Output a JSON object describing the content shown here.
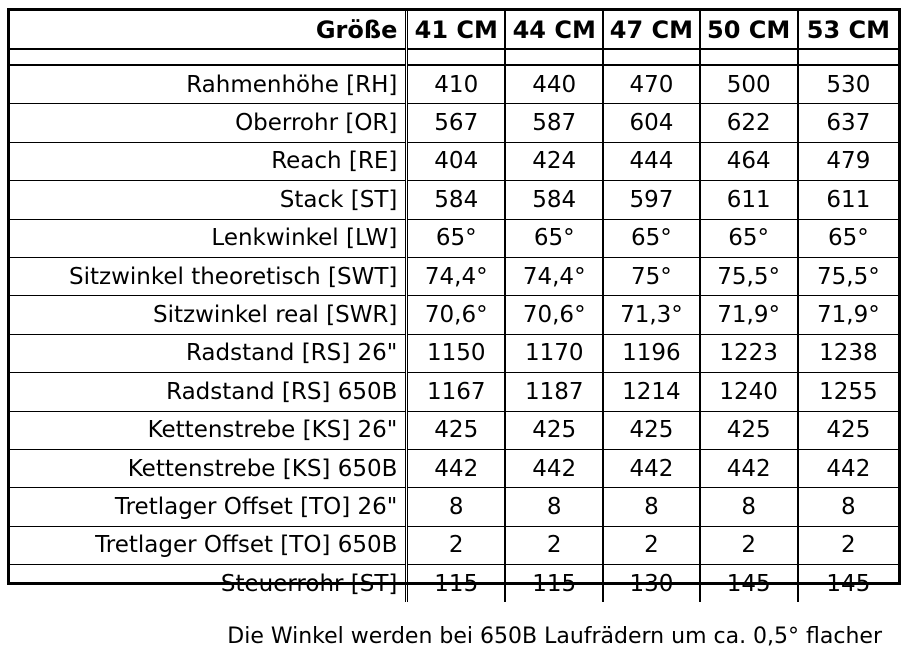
{
  "table": {
    "header_label": "Größe",
    "sizes": [
      "41 CM",
      "44 CM",
      "47 CM",
      "50 CM",
      "53 CM"
    ],
    "rows": [
      {
        "label": "Rahmenhöhe [RH]",
        "values": [
          "410",
          "440",
          "470",
          "500",
          "530"
        ]
      },
      {
        "label": "Oberrohr [OR]",
        "values": [
          "567",
          "587",
          "604",
          "622",
          "637"
        ]
      },
      {
        "label": "Reach [RE]",
        "values": [
          "404",
          "424",
          "444",
          "464",
          "479"
        ]
      },
      {
        "label": "Stack [ST]",
        "values": [
          "584",
          "584",
          "597",
          "611",
          "611"
        ]
      },
      {
        "label": "Lenkwinkel [LW]",
        "values": [
          "65°",
          "65°",
          "65°",
          "65°",
          "65°"
        ]
      },
      {
        "label": "Sitzwinkel theoretisch [SWT]",
        "values": [
          "74,4°",
          "74,4°",
          "75°",
          "75,5°",
          "75,5°"
        ]
      },
      {
        "label": "Sitzwinkel real [SWR]",
        "values": [
          "70,6°",
          "70,6°",
          "71,3°",
          "71,9°",
          "71,9°"
        ]
      },
      {
        "label": "Radstand [RS] 26\"",
        "values": [
          "1150",
          "1170",
          "1196",
          "1223",
          "1238"
        ]
      },
      {
        "label": "Radstand [RS] 650B",
        "values": [
          "1167",
          "1187",
          "1214",
          "1240",
          "1255"
        ]
      },
      {
        "label": "Kettenstrebe [KS] 26\"",
        "values": [
          "425",
          "425",
          "425",
          "425",
          "425"
        ]
      },
      {
        "label": "Kettenstrebe [KS] 650B",
        "values": [
          "442",
          "442",
          "442",
          "442",
          "442"
        ]
      },
      {
        "label": "Tretlager Offset [TO] 26\"",
        "values": [
          "8",
          "8",
          "8",
          "8",
          "8"
        ]
      },
      {
        "label": "Tretlager Offset [TO] 650B",
        "values": [
          "2",
          "2",
          "2",
          "2",
          "2"
        ]
      },
      {
        "label": "Steuerrohr [ST]",
        "values": [
          "115",
          "115",
          "130",
          "145",
          "145"
        ]
      }
    ]
  },
  "footnote": "Die Winkel werden bei 650B Laufrädern um ca. 0,5° flacher"
}
